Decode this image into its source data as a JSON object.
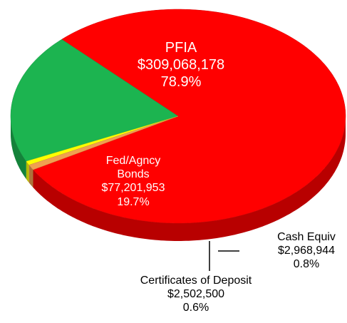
{
  "chart_data": {
    "type": "pie3d",
    "categories": [
      "PFIA",
      "Fed/Agncy Bonds",
      "Certificates of Deposit",
      "Cash Equiv"
    ],
    "amounts": [
      "$309,068,178",
      "$77,201,953",
      "$2,502,500",
      "$2,968,944"
    ],
    "values": [
      78.9,
      19.7,
      0.6,
      0.8
    ],
    "value_labels": [
      "78.9%",
      "19.7%",
      "0.6%",
      "0.8%"
    ],
    "colors": [
      "#ff0000",
      "#1cb450",
      "#ffff00",
      "#f0a050"
    ]
  }
}
